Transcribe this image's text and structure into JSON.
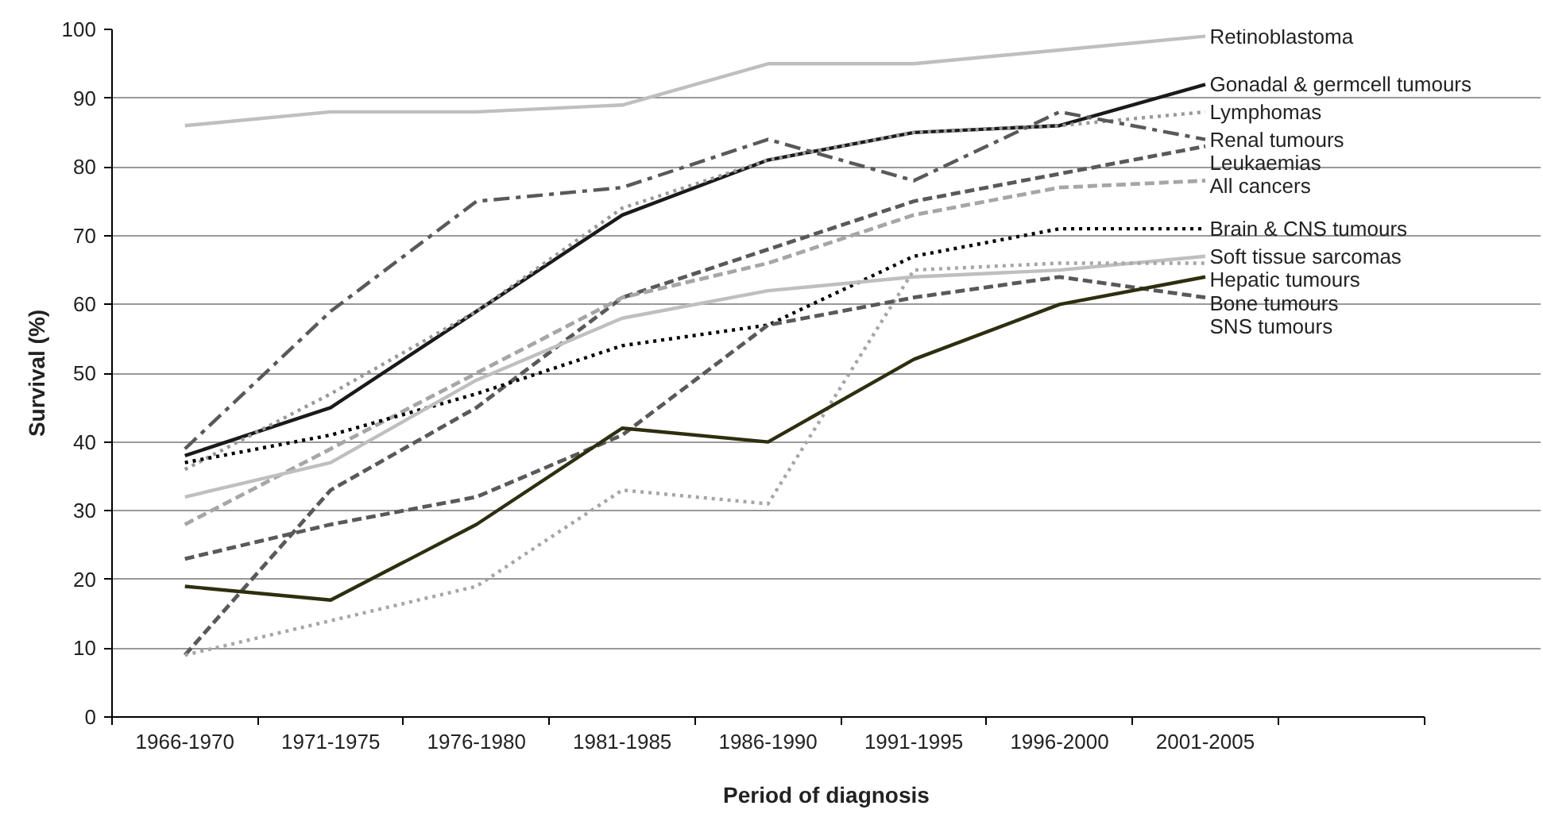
{
  "chart_data": {
    "type": "line",
    "xlabel": "Period of diagnosis",
    "ylabel": "Survival (%)",
    "categories": [
      "1966-1970",
      "1971-1975",
      "1976-1980",
      "1981-1985",
      "1986-1990",
      "1991-1995",
      "1996-2000",
      "2001-2005",
      null
    ],
    "ylim": [
      0,
      100
    ],
    "yticks": [
      0,
      10,
      20,
      30,
      40,
      50,
      60,
      70,
      80,
      90,
      100
    ],
    "grid": "y",
    "legend": false,
    "marker": "none",
    "series": [
      {
        "name": "Retinoblastoma",
        "color": "#bfbfbf",
        "line_style": "solid",
        "values": [
          86,
          88,
          88,
          89,
          95,
          95,
          97,
          99,
          null
        ]
      },
      {
        "name": "Gonadal & germcell tumours",
        "color": "#1a1a1a",
        "line_style": "solid",
        "values": [
          38,
          45,
          59,
          73,
          81,
          85,
          86,
          92,
          null
        ]
      },
      {
        "name": "Lymphomas",
        "color": "#999999",
        "line_style": "dotted",
        "values": [
          36,
          47,
          59,
          74,
          81,
          85,
          86,
          88,
          null
        ]
      },
      {
        "name": "Renal tumours",
        "color": "#595959",
        "line_style": "dashdot",
        "values": [
          39,
          59,
          75,
          77,
          84,
          78,
          88,
          84,
          null
        ]
      },
      {
        "name": "Leukaemias",
        "color": "#595959",
        "line_style": "dashed",
        "values": [
          9,
          33,
          45,
          61,
          68,
          75,
          79,
          83,
          null
        ]
      },
      {
        "name": "All cancers",
        "color": "#a6a6a6",
        "line_style": "dashed",
        "values": [
          28,
          39,
          50,
          61,
          66,
          73,
          77,
          78,
          null
        ]
      },
      {
        "name": "Brain & CNS tumours",
        "color": "#000000",
        "line_style": "dotted",
        "values": [
          37,
          41,
          47,
          54,
          57,
          67,
          71,
          71,
          null
        ]
      },
      {
        "name": "Soft tissue sarcomas",
        "color": "#bfbfbf",
        "line_style": "solid",
        "values": [
          32,
          37,
          49,
          58,
          62,
          64,
          65,
          67,
          null
        ]
      },
      {
        "name": "Hepatic tumours",
        "color": "#a6a6a6",
        "line_style": "dotted",
        "values": [
          9,
          14,
          19,
          33,
          31,
          65,
          66,
          66,
          null
        ]
      },
      {
        "name": "SNS tumours",
        "color": "#595959",
        "line_style": "dashed",
        "values": [
          23,
          28,
          32,
          41,
          57,
          61,
          64,
          61,
          null
        ]
      },
      {
        "name": "Bone tumours",
        "color": "#2e2e10",
        "line_style": "solid",
        "values": [
          19,
          17,
          28,
          42,
          40,
          52,
          60,
          64,
          null
        ]
      }
    ]
  }
}
